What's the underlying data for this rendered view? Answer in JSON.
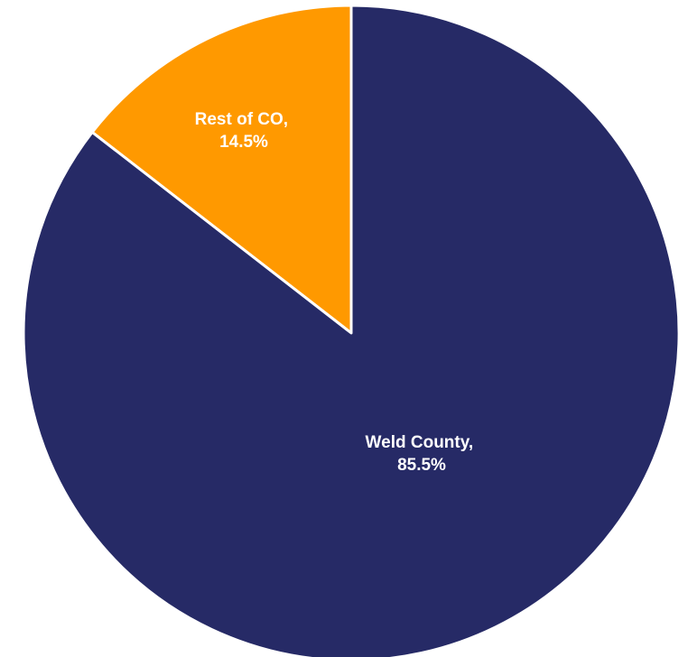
{
  "chart_data": {
    "type": "pie",
    "slices": [
      {
        "label": "Rest of CO,",
        "value_label": "14.5%",
        "value": 14.5,
        "color": "#FF9900"
      },
      {
        "label": "Weld County,",
        "value_label": "85.5%",
        "value": 85.5,
        "color": "#262A66"
      }
    ],
    "start": "12 o'clock",
    "direction": "counterclockwise",
    "separator_color": "#ffffff"
  }
}
